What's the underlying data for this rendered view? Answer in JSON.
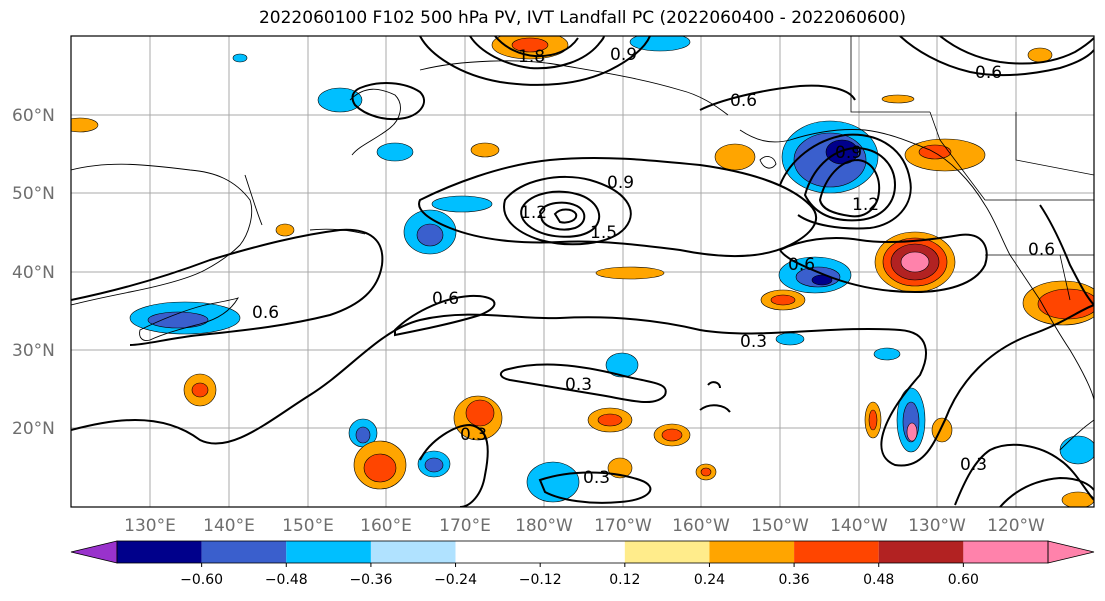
{
  "title": "2022060100 F102 500 hPa PV, IVT Landfall PC (2022060400 - 2022060600)",
  "lat_labels": [
    "60°N",
    "50°N",
    "40°N",
    "30°N",
    "20°N"
  ],
  "lon_labels": [
    "130°E",
    "140°E",
    "150°E",
    "160°E",
    "170°E",
    "180°W",
    "170°W",
    "160°W",
    "150°W",
    "140°W",
    "130°W",
    "120°W"
  ],
  "contour_labels": [
    "0.6",
    "0.6",
    "0.9",
    "1.2",
    "1.5",
    "0.9",
    "1.2",
    "0.6",
    "0.3",
    "0.3",
    "0.3",
    "0.3",
    "0.3",
    "0.6",
    "0.6",
    "1.8",
    "0.9",
    "0.6"
  ],
  "colorbar": {
    "ticks": [
      "−0.60",
      "−0.48",
      "−0.36",
      "−0.24",
      "−0.12",
      "0.12",
      "0.24",
      "0.36",
      "0.48",
      "0.60"
    ],
    "colors": [
      "#9932cc",
      "#00008b",
      "#3a5fcd",
      "#00bfff",
      "#b0e2ff",
      "#ffffff",
      "#ffec8b",
      "#ffa500",
      "#ff4500",
      "#b22222",
      "#ff82ab"
    ]
  }
}
